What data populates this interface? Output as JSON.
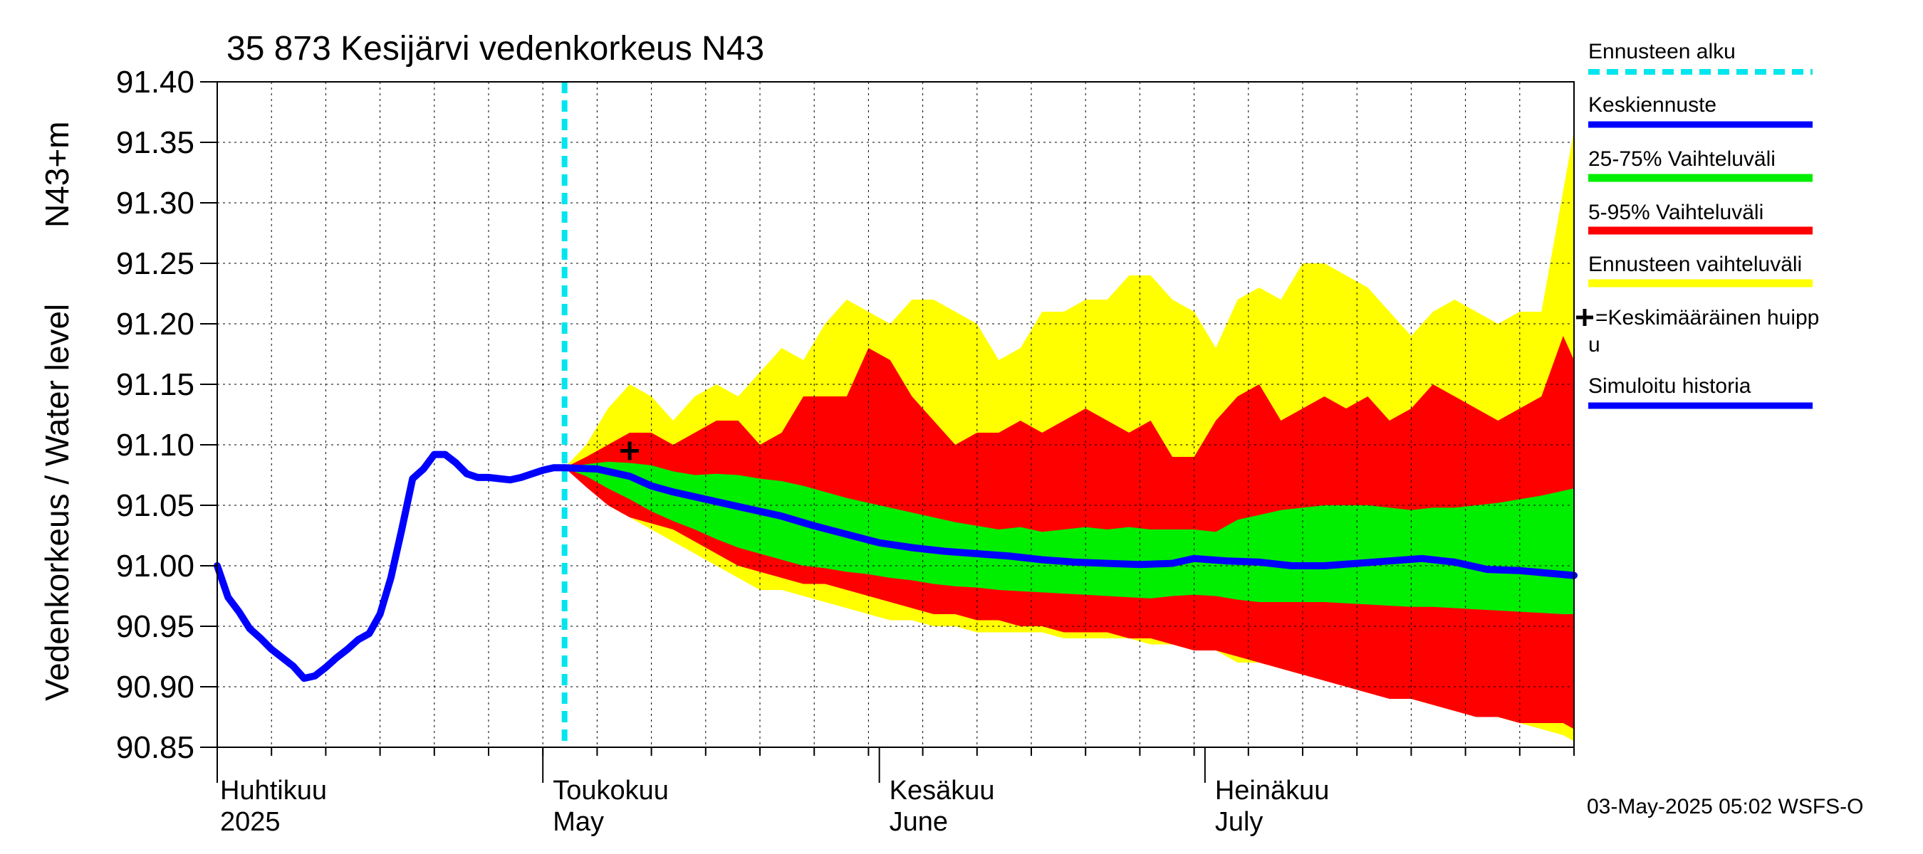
{
  "chart_data": {
    "type": "area",
    "title": "35 873 Kesijärvi vedenkorkeus N43",
    "ylabel_left": "Vedenkorkeus / Water level",
    "ylabel_right": "N43+m",
    "ylim": [
      90.85,
      91.4
    ],
    "yticks": [
      "91.40",
      "91.35",
      "91.30",
      "91.25",
      "91.20",
      "91.15",
      "91.10",
      "91.05",
      "91.00",
      "90.95",
      "90.90",
      "90.85"
    ],
    "x_domain_days": [
      0,
      125
    ],
    "months": [
      {
        "name": "Huhtikuu",
        "year": "2025",
        "day": 0
      },
      {
        "name": "Toukokuu",
        "year": "May",
        "day": 30
      },
      {
        "name": "Kesäkuu",
        "year": "June",
        "day": 61
      },
      {
        "name": "Heinäkuu",
        "year": "July",
        "day": 91
      }
    ],
    "forecast_start_day": 32,
    "footer": "03-May-2025 05:02 WSFS-O",
    "legend": {
      "forecast_start": "Ennusteen alku",
      "mean_forecast": "Keskiennuste",
      "band_25_75": "25-75% Vaihteluväli",
      "band_5_95": "5-95% Vaihteluväli",
      "band_full": "Ennusteen vaihteluväli",
      "mean_peak_line1": "=Keskimääräinen huipp",
      "mean_peak_line2": "u",
      "sim_history": "Simuloitu historia"
    },
    "colors": {
      "forecast_start": "#00e5ee",
      "mean": "#0000ff",
      "band_25_75": "#00ee00",
      "band_5_95": "#ff0000",
      "band_full": "#ffff00",
      "grid": "#000000"
    },
    "history": {
      "x": [
        0,
        1,
        2,
        3,
        4,
        5,
        6,
        7,
        8,
        9,
        10,
        11,
        12,
        13,
        14,
        15,
        16,
        17,
        18,
        19,
        20,
        21,
        22,
        23,
        24,
        25,
        26,
        27,
        28,
        29,
        30,
        31,
        32
      ],
      "y": [
        91.0,
        90.974,
        90.962,
        90.948,
        90.94,
        90.931,
        90.924,
        90.917,
        90.907,
        90.909,
        90.916,
        90.924,
        90.931,
        90.939,
        90.944,
        90.96,
        90.99,
        91.03,
        91.072,
        91.08,
        91.092,
        91.092,
        91.085,
        91.076,
        91.073,
        91.073,
        91.072,
        91.071,
        91.073,
        91.076,
        91.079,
        91.081,
        91.081
      ]
    },
    "mean_forecast": {
      "x": [
        32,
        35,
        38,
        40,
        42,
        45,
        48,
        52,
        55,
        58,
        61,
        64,
        67,
        70,
        73,
        76,
        79,
        82,
        85,
        88,
        90,
        93,
        96,
        99,
        102,
        105,
        108,
        111,
        114,
        117,
        120,
        125
      ],
      "y": [
        91.081,
        91.08,
        91.074,
        91.066,
        91.061,
        91.055,
        91.049,
        91.041,
        91.033,
        91.026,
        91.019,
        91.015,
        91.012,
        91.01,
        91.008,
        91.005,
        91.003,
        91.002,
        91.001,
        91.002,
        91.006,
        91.004,
        91.003,
        91.0,
        91.0,
        91.002,
        91.004,
        91.006,
        91.003,
        90.997,
        90.996,
        90.992
      ]
    },
    "band_full": {
      "x": [
        32,
        34,
        36,
        38,
        40,
        42,
        44,
        46,
        48,
        50,
        52,
        54,
        56,
        58,
        60,
        62,
        64,
        66,
        68,
        70,
        72,
        74,
        76,
        78,
        80,
        82,
        84,
        86,
        88,
        90,
        92,
        94,
        96,
        98,
        100,
        102,
        104,
        106,
        108,
        110,
        112,
        114,
        116,
        118,
        120,
        122,
        124,
        125
      ],
      "upper": [
        91.081,
        91.1,
        91.13,
        91.15,
        91.14,
        91.12,
        91.14,
        91.15,
        91.14,
        91.16,
        91.18,
        91.17,
        91.2,
        91.22,
        91.21,
        91.2,
        91.22,
        91.22,
        91.21,
        91.2,
        91.17,
        91.18,
        91.21,
        91.21,
        91.22,
        91.22,
        91.24,
        91.24,
        91.22,
        91.21,
        91.18,
        91.22,
        91.23,
        91.22,
        91.25,
        91.25,
        91.24,
        91.23,
        91.21,
        91.19,
        91.21,
        91.22,
        91.21,
        91.2,
        91.21,
        91.21,
        91.31,
        91.36
      ],
      "lower": [
        91.081,
        91.07,
        91.05,
        91.04,
        91.03,
        91.02,
        91.01,
        91.0,
        90.99,
        90.98,
        90.98,
        90.975,
        90.97,
        90.965,
        90.96,
        90.955,
        90.955,
        90.95,
        90.95,
        90.945,
        90.945,
        90.945,
        90.945,
        90.94,
        90.94,
        90.94,
        90.94,
        90.935,
        90.935,
        90.93,
        90.93,
        90.92,
        90.92,
        90.915,
        90.91,
        90.91,
        90.905,
        90.9,
        90.895,
        90.89,
        90.885,
        90.88,
        90.88,
        90.875,
        90.87,
        90.865,
        90.86,
        90.855
      ]
    },
    "band_5_95": {
      "x": [
        32,
        34,
        36,
        38,
        40,
        42,
        44,
        46,
        48,
        50,
        52,
        54,
        56,
        58,
        60,
        62,
        64,
        66,
        68,
        70,
        72,
        74,
        76,
        78,
        80,
        82,
        84,
        86,
        88,
        90,
        92,
        94,
        96,
        98,
        100,
        102,
        104,
        106,
        108,
        110,
        112,
        114,
        116,
        118,
        120,
        122,
        124,
        125
      ],
      "upper": [
        91.081,
        91.09,
        91.1,
        91.11,
        91.11,
        91.1,
        91.11,
        91.12,
        91.12,
        91.1,
        91.11,
        91.14,
        91.14,
        91.14,
        91.18,
        91.17,
        91.14,
        91.12,
        91.1,
        91.11,
        91.11,
        91.12,
        91.11,
        91.12,
        91.13,
        91.12,
        91.11,
        91.12,
        91.09,
        91.09,
        91.12,
        91.14,
        91.15,
        91.12,
        91.13,
        91.14,
        91.13,
        91.14,
        91.12,
        91.13,
        91.15,
        91.14,
        91.13,
        91.12,
        91.13,
        91.14,
        91.19,
        91.17
      ],
      "lower": [
        91.081,
        91.065,
        91.05,
        91.04,
        91.035,
        91.03,
        91.02,
        91.01,
        91.0,
        90.995,
        90.99,
        90.985,
        90.985,
        90.98,
        90.975,
        90.97,
        90.965,
        90.96,
        90.96,
        90.955,
        90.955,
        90.95,
        90.95,
        90.945,
        90.945,
        90.945,
        90.94,
        90.94,
        90.935,
        90.93,
        90.93,
        90.925,
        90.92,
        90.915,
        90.91,
        90.905,
        90.9,
        90.895,
        90.89,
        90.89,
        90.885,
        90.88,
        90.875,
        90.875,
        90.87,
        90.87,
        90.87,
        90.865
      ]
    },
    "band_25_75": {
      "x": [
        32,
        34,
        36,
        38,
        40,
        42,
        44,
        46,
        48,
        50,
        52,
        54,
        56,
        58,
        60,
        62,
        64,
        66,
        68,
        70,
        72,
        74,
        76,
        78,
        80,
        82,
        84,
        86,
        88,
        90,
        92,
        94,
        96,
        98,
        100,
        102,
        104,
        106,
        108,
        110,
        112,
        114,
        116,
        118,
        120,
        122,
        124,
        125
      ],
      "upper": [
        91.081,
        91.084,
        91.086,
        91.085,
        91.083,
        91.078,
        91.075,
        91.076,
        91.075,
        91.072,
        91.07,
        91.066,
        91.061,
        91.056,
        91.052,
        91.048,
        91.044,
        91.04,
        91.036,
        91.033,
        91.03,
        91.032,
        91.028,
        91.03,
        91.032,
        91.03,
        91.032,
        91.03,
        91.03,
        91.03,
        91.028,
        91.038,
        91.042,
        91.046,
        91.048,
        91.05,
        91.05,
        91.05,
        91.048,
        91.046,
        91.048,
        91.048,
        91.05,
        91.052,
        91.055,
        91.058,
        91.062,
        91.064
      ],
      "lower": [
        91.081,
        91.074,
        91.064,
        91.055,
        91.045,
        91.037,
        91.03,
        91.022,
        91.015,
        91.01,
        91.005,
        91.0,
        90.998,
        90.995,
        90.993,
        90.99,
        90.988,
        90.985,
        90.983,
        90.982,
        90.98,
        90.979,
        90.978,
        90.977,
        90.976,
        90.975,
        90.974,
        90.973,
        90.975,
        90.976,
        90.975,
        90.972,
        90.97,
        90.97,
        90.97,
        90.97,
        90.969,
        90.968,
        90.967,
        90.966,
        90.966,
        90.965,
        90.964,
        90.963,
        90.962,
        90.961,
        90.96,
        90.96
      ]
    },
    "mean_peak": {
      "x": 38,
      "y": 91.095
    }
  }
}
